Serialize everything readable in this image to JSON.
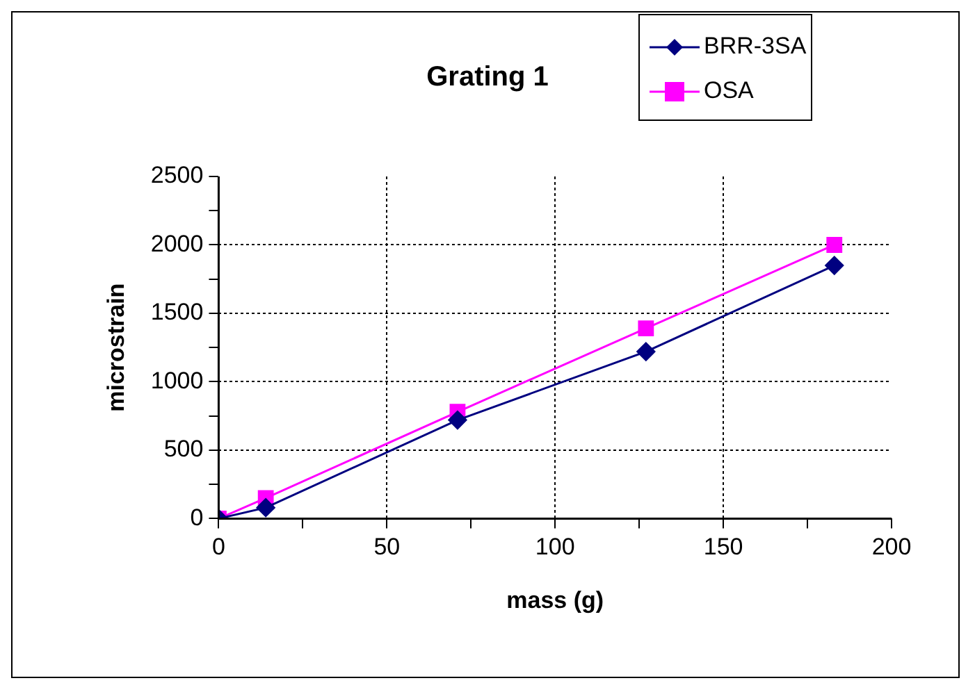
{
  "chart_data": {
    "type": "line",
    "title": "Grating 1",
    "xlabel": "mass (g)",
    "ylabel": "microstrain",
    "x": [
      0,
      14,
      71,
      127,
      183
    ],
    "series": [
      {
        "name": "BRR-3SA",
        "color": "#000080",
        "marker": "diamond",
        "values": [
          0,
          80,
          720,
          1220,
          1850
        ]
      },
      {
        "name": "OSA",
        "color": "#ff00ff",
        "marker": "square",
        "values": [
          0,
          150,
          780,
          1390,
          2000
        ]
      }
    ],
    "xlim": [
      0,
      200
    ],
    "xticks": [
      0,
      {
        "value": 25,
        "label": null
      },
      50,
      {
        "value": 75,
        "label": null
      },
      100,
      {
        "value": 125,
        "label": null
      },
      150,
      {
        "value": 175,
        "label": null
      },
      200
    ],
    "ylim": [
      0,
      2500
    ],
    "yticks": [
      0,
      {
        "value": 250,
        "label": null
      },
      500,
      {
        "value": 750,
        "label": null
      },
      1000,
      {
        "value": 1250,
        "label": null
      },
      1500,
      {
        "value": 1750,
        "label": null
      },
      2000,
      {
        "value": 2250,
        "label": null
      },
      2500
    ],
    "grid": true,
    "legend": "top right",
    "line_style": "solid"
  }
}
